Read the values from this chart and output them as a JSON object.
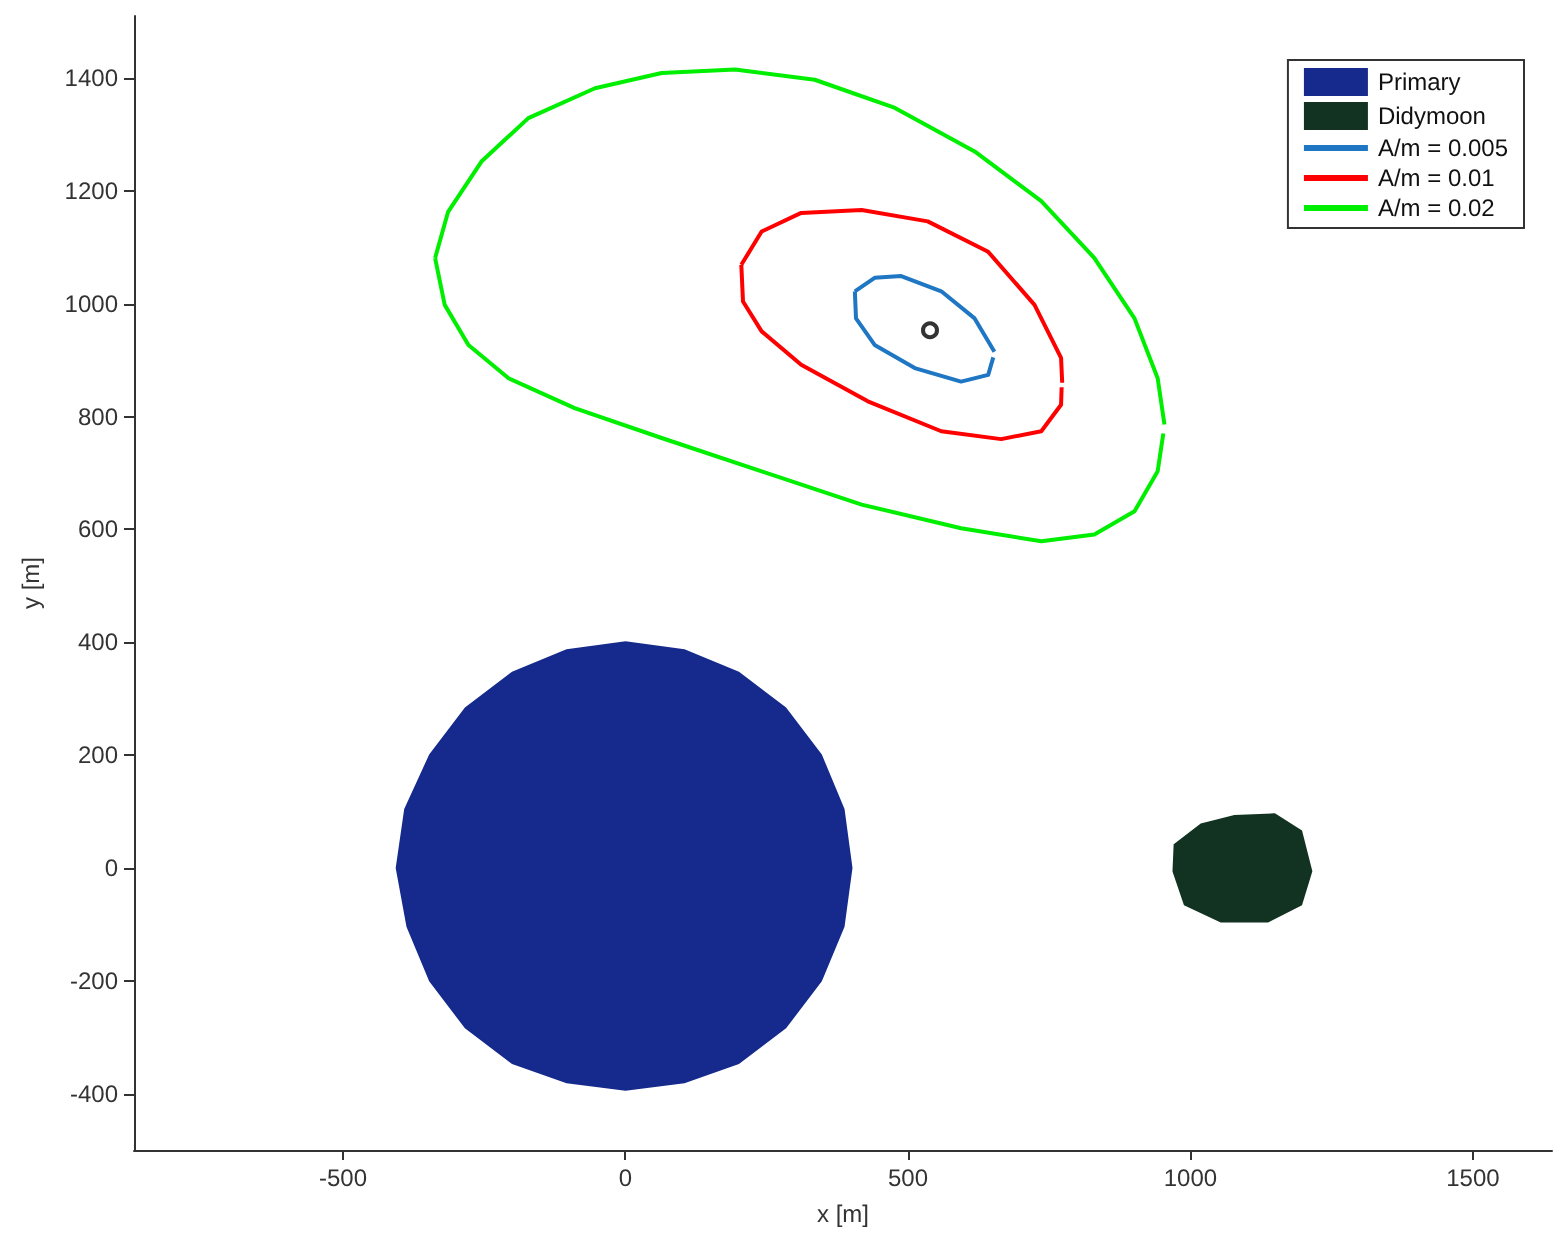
{
  "chart_data": {
    "type": "line",
    "xlabel": "x [m]",
    "ylabel": "y [m]",
    "xlim": [
      -870,
      1640
    ],
    "ylim": [
      -500,
      1510
    ],
    "xticks": [
      -500,
      0,
      500,
      1000,
      1500
    ],
    "yticks": [
      -400,
      -200,
      0,
      200,
      400,
      600,
      800,
      1000,
      1200,
      1400
    ],
    "grid": false,
    "legend": "top right",
    "line_style": "solid",
    "series": [
      {
        "name": "Primary",
        "type": "area",
        "color": "#152a8c",
        "x": [
          400,
          386,
          346,
          283,
          200,
          104,
          0,
          -104,
          -200,
          -283,
          -346,
          -390,
          -405,
          -386,
          -346,
          -283,
          -200,
          -104,
          0,
          104,
          200,
          283,
          346,
          386
        ],
        "values": [
          0,
          104,
          200,
          283,
          346,
          386,
          400,
          386,
          346,
          283,
          200,
          104,
          0,
          -104,
          -200,
          -283,
          -346,
          -380,
          -393,
          -380,
          -346,
          -283,
          -200,
          -104
        ]
      },
      {
        "name": "Didymoon",
        "type": "area",
        "color": "#133322",
        "x": [
          972,
          1019,
          1078,
          1149,
          1196,
          1214,
          1196,
          1137,
          1054,
          990,
          970
        ],
        "values": [
          41,
          77,
          92,
          95,
          65,
          -6,
          -65,
          -95,
          -95,
          -65,
          -6
        ]
      },
      {
        "name": "A/m = 0.005",
        "color": "#1f77c4",
        "x": [
          406,
          441,
          488,
          559,
          618,
          653
        ],
        "values": [
          1022,
          1046,
          1049,
          1022,
          974,
          915
        ]
      },
      {
        "color": "#1f77c4",
        "x": [
          406,
          408,
          441,
          512,
          594,
          642,
          651
        ],
        "values": [
          1022,
          974,
          927,
          886,
          862,
          874,
          905
        ]
      },
      {
        "name": "A/m = 0.01",
        "color": "#ff0000",
        "x": [
          205,
          241,
          311,
          418,
          535,
          642,
          724,
          771,
          773
        ],
        "values": [
          1069,
          1128,
          1161,
          1166,
          1146,
          1092,
          998,
          904,
          860
        ]
      },
      {
        "color": "#ff0000",
        "x": [
          205,
          208,
          241,
          311,
          429,
          559,
          665,
          736,
          771,
          772
        ],
        "values": [
          1069,
          1004,
          951,
          892,
          827,
          774,
          760,
          774,
          821,
          852
        ]
      },
      {
        "name": "A/m = 0.02",
        "color": "#00ee00",
        "x": [
          -337,
          -314,
          -255,
          -172,
          -54,
          64,
          194,
          335,
          477,
          618,
          736,
          830,
          901,
          942,
          954
        ],
        "values": [
          1081,
          1163,
          1252,
          1329,
          1382,
          1409,
          1415,
          1397,
          1347,
          1270,
          1182,
          1081,
          974,
          868,
          786
        ]
      },
      {
        "color": "#00ee00",
        "x": [
          -337,
          -320,
          -278,
          -207,
          -90,
          64,
          241,
          418,
          594,
          736,
          830,
          901,
          942,
          952
        ],
        "values": [
          1081,
          998,
          927,
          868,
          815,
          762,
          703,
          644,
          602,
          579,
          591,
          632,
          703,
          770
        ]
      },
      {
        "type": "scatter",
        "color": "#000000",
        "marker": "circle",
        "x": [
          539
        ],
        "values": [
          953
        ]
      }
    ]
  }
}
